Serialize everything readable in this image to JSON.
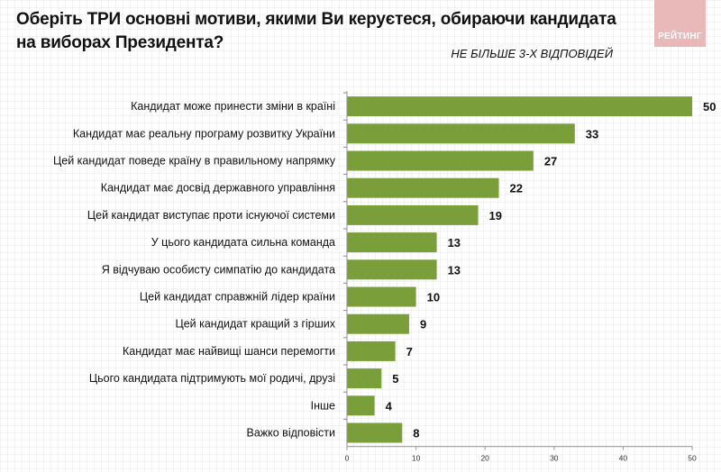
{
  "header": {
    "title": "Оберіть ТРИ основні мотиви, якими Ви керуєтеся, обираючи кандидата на виборах Президента?",
    "subtitle": "НЕ БІЛЬШЕ 3-Х ВІДПОВІДЕЙ",
    "logo_text": "РЕЙТИНГ"
  },
  "colors": {
    "bar": "#7a9e3a",
    "logo_bg": "#e9b8b8"
  },
  "chart_data": {
    "type": "bar",
    "orientation": "horizontal",
    "title": "Оберіть ТРИ основні мотиви, якими Ви керуєтеся, обираючи кандидата на виборах Президента?",
    "subtitle": "НЕ БІЛЬШЕ 3-Х ВІДПОВІДЕЙ",
    "categories": [
      "Кандидат може принести зміни в країні",
      "Кандидат має реальну програму розвитку України",
      "Цей кандидат поведе країну в правильному напрямку",
      "Кандидат має досвід державного управління",
      "Цей кандидат виступає проти існуючої системи",
      "У цього кандидата сильна команда",
      "Я відчуваю особисту симпатію до кандидата",
      "Цей кандидат справжній лідер країни",
      "Цей кандидат кращий з гірших",
      "Кандидат має найвищі шанси перемогти",
      "Цього кандидата підтримують мої родичі, друзі",
      "Інше",
      "Важко відповісти"
    ],
    "values": [
      50,
      33,
      27,
      22,
      19,
      13,
      13,
      10,
      9,
      7,
      5,
      4,
      8
    ],
    "xlim": [
      0,
      50
    ],
    "xticks": [
      "0",
      "10",
      "20",
      "30",
      "40",
      "50"
    ],
    "xlabel": "",
    "ylabel": "",
    "grid": false,
    "legend": "none"
  }
}
